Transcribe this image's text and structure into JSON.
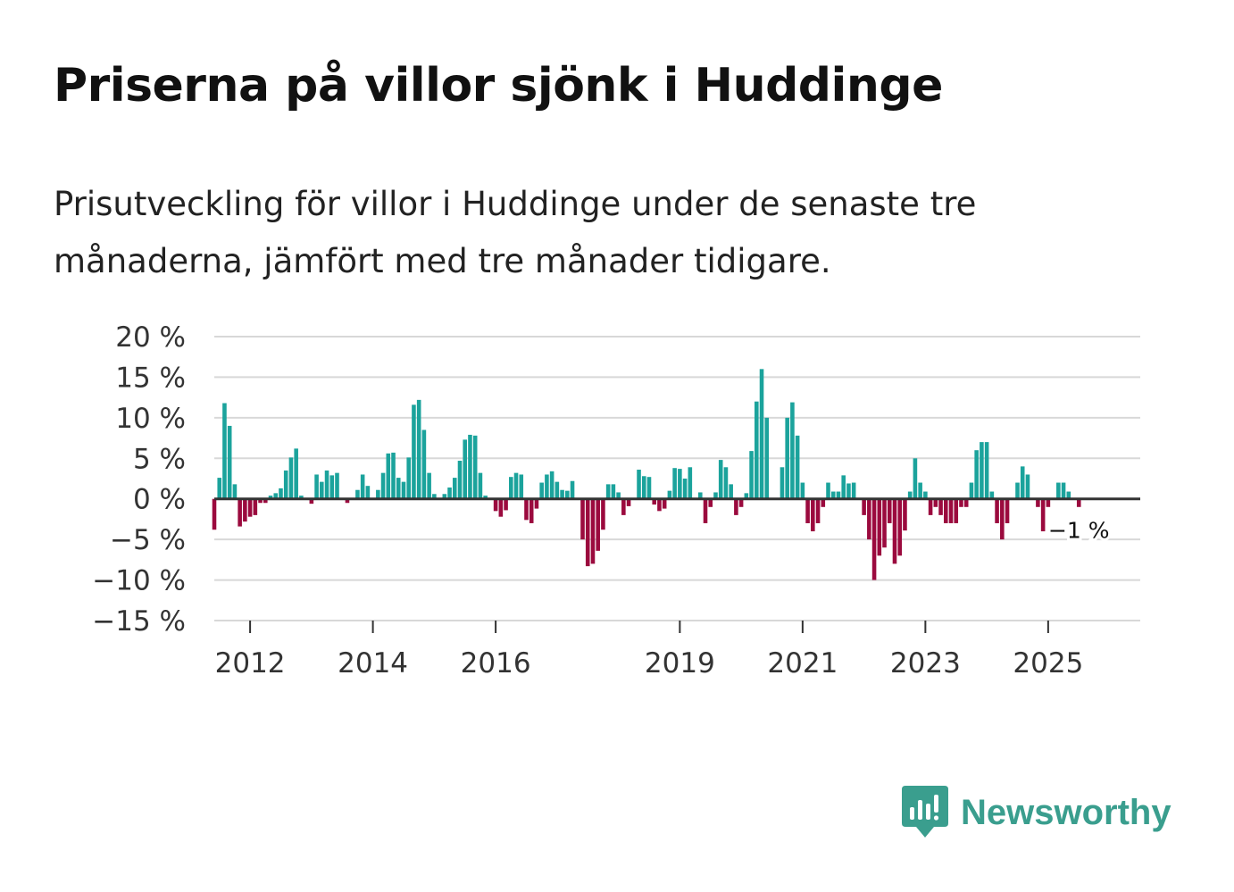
{
  "header": {
    "title": "Priserna på villor sjönk i Huddinge",
    "subtitle": "Prisutveckling för villor i Huddinge under de senaste tre månaderna, jämfört med tre månader tidigare."
  },
  "colors": {
    "positive": "#1ba39c",
    "negative": "#9b0a3e",
    "grid": "#d8d8d8",
    "zero_line": "#333333",
    "brand": "#3a9e8e"
  },
  "logo": {
    "text": "Newsworthy",
    "icon": "newsworthy-chart-icon"
  },
  "chart_data": {
    "type": "bar",
    "title": "Priserna på villor sjönk i Huddinge",
    "xlabel": "",
    "ylabel": "",
    "unit": "%",
    "ylim": [
      -15,
      20
    ],
    "y_ticks": [
      20,
      15,
      10,
      5,
      0,
      -5,
      -10,
      -15
    ],
    "y_tick_labels": [
      "20 %",
      "15 %",
      "10 %",
      "5 %",
      "0 %",
      "−5 %",
      "−10 %",
      "−15 %"
    ],
    "x_start": [
      2011,
      6
    ],
    "x_end": [
      2026,
      7
    ],
    "x_ticks": [
      {
        "label": "2012",
        "year": 2012
      },
      {
        "label": "2014",
        "year": 2014
      },
      {
        "label": "2016",
        "year": 2016
      },
      {
        "label": "2019",
        "year": 2019
      },
      {
        "label": "2021",
        "year": 2021
      },
      {
        "label": "2023",
        "year": 2023
      },
      {
        "label": "2025",
        "year": 2025
      }
    ],
    "series": [
      {
        "name": "Prisutveckling",
        "start": [
          2011,
          6
        ],
        "values": [
          -3.8,
          2.6,
          11.8,
          9.0,
          1.8,
          -3.4,
          -2.8,
          -2.2,
          -2.0,
          -0.5,
          -0.5,
          0.4,
          0.7,
          1.3,
          3.5,
          5.1,
          6.2,
          0.4,
          0.0,
          -0.6,
          3.0,
          2.1,
          3.5,
          2.9,
          3.2,
          0.1,
          -0.5,
          0.0,
          1.1,
          3.0,
          1.6,
          0.1,
          1.1,
          3.2,
          5.6,
          5.7,
          2.6,
          2.1,
          5.1,
          11.6,
          12.2,
          8.5,
          3.2,
          0.6,
          0.0,
          0.6,
          1.4,
          2.6,
          4.7,
          7.3,
          7.9,
          7.8,
          3.2,
          0.4,
          0.0,
          -1.5,
          -2.2,
          -1.4,
          2.7,
          3.2,
          3.0,
          -2.6,
          -3.0,
          -1.2,
          2.0,
          3.0,
          3.4,
          2.1,
          1.1,
          1.0,
          2.2,
          0.0,
          -5.0,
          -8.3,
          -8.0,
          -6.4,
          -3.8,
          1.8,
          1.8,
          0.8,
          -2.0,
          -0.9,
          0.0,
          3.6,
          2.8,
          2.7,
          -0.7,
          -1.5,
          -1.2,
          1.0,
          3.8,
          3.7,
          2.5,
          3.9,
          0.0,
          0.8,
          -3.0,
          -1.0,
          0.8,
          4.8,
          3.9,
          1.8,
          -2.0,
          -1.0,
          0.7,
          5.9,
          12.0,
          16.0,
          10.0,
          0.0,
          0.0,
          3.9,
          10.0,
          11.9,
          7.8,
          2.0,
          -3.0,
          -4.0,
          -3.0,
          -1.0,
          2.0,
          0.9,
          0.9,
          2.9,
          1.9,
          2.0,
          0.0,
          -2.0,
          -5.0,
          -10.0,
          -7.0,
          -6.0,
          -3.0,
          -8.0,
          -7.0,
          -3.9,
          0.9,
          5.0,
          2.0,
          0.9,
          -2.0,
          -1.0,
          -2.0,
          -3.0,
          -3.0,
          -3.0,
          -1.0,
          -1.0,
          2.0,
          6.0,
          7.0,
          7.0,
          0.9,
          -3.0,
          -5.0,
          -3.0,
          0.0,
          2.0,
          4.0,
          3.0,
          0.0,
          -1.0,
          -4.0,
          -1.0,
          0.0,
          2.0,
          2.0,
          0.9,
          0.0,
          -1.0,
          0.0
        ]
      }
    ],
    "end_label": "−1 %"
  }
}
